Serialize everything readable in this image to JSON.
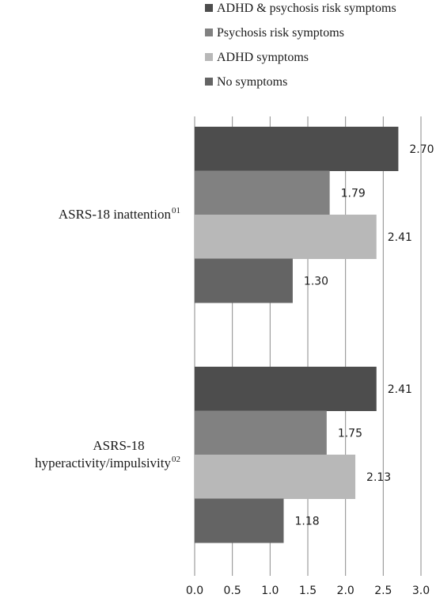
{
  "chart_data": {
    "type": "bar",
    "orientation": "horizontal",
    "categories": [
      {
        "lines": [
          "ASRS-18 inattention"
        ],
        "sup": "01"
      },
      {
        "lines": [
          "ASRS-18",
          "hyperactivity/impulsivity"
        ],
        "sup": "02"
      }
    ],
    "series": [
      {
        "name": "ADHD & psychosis risk symptoms",
        "color": "#4d4d4d",
        "values": [
          2.7,
          2.41
        ]
      },
      {
        "name": "Psychosis risk symptoms",
        "color": "#818181",
        "values": [
          1.79,
          1.75
        ]
      },
      {
        "name": "ADHD symptoms",
        "color": "#b8b8b8",
        "values": [
          2.41,
          2.13
        ]
      },
      {
        "name": "No symptoms",
        "color": "#646464",
        "values": [
          1.3,
          1.18
        ]
      }
    ],
    "xlim": [
      0,
      3.0
    ],
    "xticks": [
      "0.0",
      "0.5",
      "1.0",
      "1.5",
      "2.0",
      "2.5",
      "3.0"
    ],
    "legend_position": "top",
    "grid": "vertical"
  }
}
